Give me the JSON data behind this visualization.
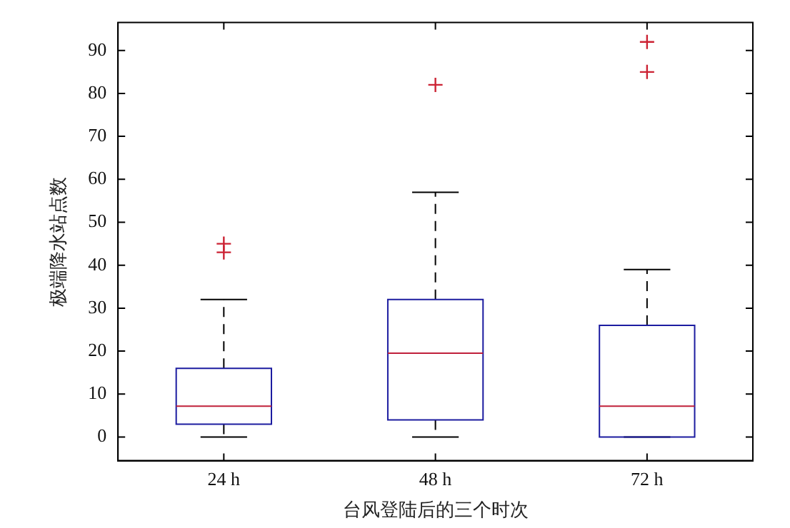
{
  "chart_data": {
    "type": "box",
    "xlabel": "台风登陆后的三个时次",
    "ylabel": "极端降水站点数",
    "categories": [
      "24 h",
      "48 h",
      "72 h"
    ],
    "series": [
      {
        "color": "#1c1ca0",
        "boxes": [
          {
            "low": 0,
            "q1": 3,
            "median": 7.2,
            "q3": 16,
            "high": 32,
            "outliers": [
              43,
              45
            ]
          },
          {
            "low": 0,
            "q1": 4,
            "median": 19.5,
            "q3": 32,
            "high": 57,
            "outliers": [
              82
            ]
          },
          {
            "low": 0,
            "q1": 0,
            "median": 7.2,
            "q3": 26,
            "high": 39,
            "outliers": [
              85,
              92
            ]
          }
        ]
      }
    ],
    "ylim": [
      -5.5,
      96.5
    ],
    "yticks": [
      0,
      10,
      20,
      30,
      40,
      50,
      60,
      70,
      80,
      90
    ],
    "grid": false
  }
}
